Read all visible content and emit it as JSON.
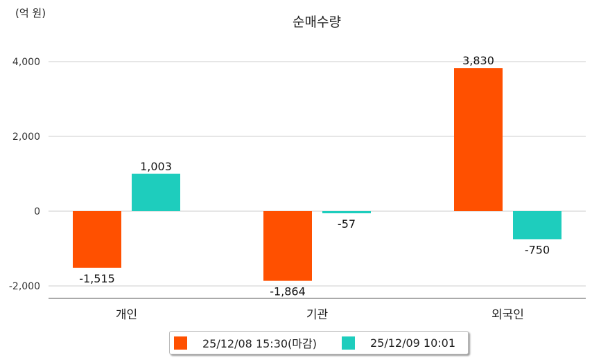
{
  "chart_data": {
    "type": "bar",
    "title": "순매수량",
    "unit_label": "(억 원)",
    "xlabel": "",
    "ylabel": "",
    "categories": [
      "개인",
      "기관",
      "외국인"
    ],
    "series": [
      {
        "name": "25/12/08 15:30(마감)",
        "color": "#ff5000",
        "values": [
          -1515,
          -1864,
          3830
        ],
        "labels": [
          "-1,515",
          "-1,864",
          "3,830"
        ]
      },
      {
        "name": "25/12/09 10:01",
        "color": "#1ecdbd",
        "values": [
          1003,
          -57,
          -750
        ],
        "labels": [
          "1,003",
          "-57",
          "-750"
        ]
      }
    ],
    "yticks": [
      4000,
      2000,
      0,
      -2000
    ],
    "ytick_labels": [
      "4,000",
      "2,000",
      "0",
      "-2,000"
    ],
    "ylim": [
      -2333,
      4400
    ],
    "grid": true,
    "legend_position": "bottom"
  }
}
